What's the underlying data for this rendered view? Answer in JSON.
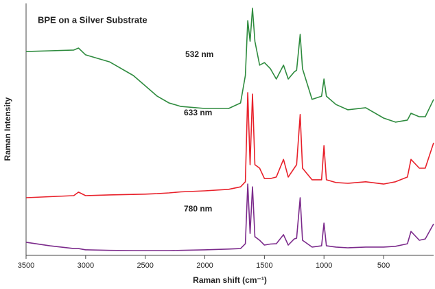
{
  "chart_data": {
    "type": "line",
    "title": "BPE on a Silver Substrate",
    "xlabel": "Raman shift (cm⁻¹)",
    "ylabel": "Raman Intensity",
    "x": [
      3500,
      3300,
      3100,
      3060,
      3000,
      2800,
      2600,
      2500,
      2400,
      2300,
      2200,
      2000,
      1800,
      1700,
      1660,
      1640,
      1620,
      1600,
      1580,
      1540,
      1500,
      1450,
      1400,
      1340,
      1300,
      1250,
      1230,
      1200,
      1180,
      1100,
      1020,
      1000,
      980,
      900,
      800,
      650,
      500,
      400,
      300,
      270,
      200,
      150,
      80
    ],
    "series": [
      {
        "name": "532 nm",
        "color": "#2e8b3e",
        "values": [
          80.9,
          81.2,
          81.5,
          82.3,
          79.6,
          76.8,
          71.4,
          67.3,
          63.2,
          60.5,
          59.1,
          58.3,
          58.3,
          60.5,
          71.4,
          93.2,
          85.0,
          98.1,
          85.0,
          75.5,
          76.5,
          74.1,
          70.0,
          75.5,
          70.0,
          72.8,
          73.5,
          87.7,
          74.1,
          61.9,
          63.2,
          70.0,
          63.2,
          59.9,
          57.8,
          58.6,
          54.5,
          52.9,
          53.7,
          56.4,
          55.0,
          55.0,
          61.9
        ]
      },
      {
        "name": "633 nm",
        "color": "#e8202a",
        "values": [
          22.9,
          23.3,
          23.7,
          25.1,
          23.7,
          24.0,
          24.2,
          24.3,
          24.5,
          24.8,
          25.2,
          25.6,
          26.2,
          27.2,
          29.2,
          64.6,
          36.0,
          64.0,
          36.0,
          34.6,
          30.5,
          30.5,
          31.1,
          38.1,
          31.1,
          34.6,
          36.0,
          55.9,
          34.6,
          30.0,
          30.0,
          43.6,
          30.0,
          28.9,
          28.6,
          29.2,
          28.3,
          29.2,
          31.1,
          38.1,
          34.6,
          34.6,
          44.7
        ]
      },
      {
        "name": "780 nm",
        "color": "#7b2a8b",
        "values": [
          5.2,
          3.8,
          2.7,
          2.7,
          2.2,
          2.0,
          1.9,
          1.9,
          1.9,
          1.9,
          2.0,
          2.2,
          2.5,
          2.7,
          4.6,
          28.3,
          8.7,
          27.2,
          7.4,
          6.0,
          4.1,
          4.5,
          4.6,
          8.2,
          4.1,
          6.5,
          6.8,
          22.9,
          6.0,
          3.3,
          3.8,
          12.8,
          3.8,
          3.3,
          3.0,
          3.3,
          3.3,
          3.6,
          4.6,
          9.5,
          6.0,
          6.5,
          12.5
        ]
      }
    ],
    "xlim": [
      3500,
      80
    ],
    "xticks": [
      3500,
      3000,
      2500,
      2000,
      1500,
      1000,
      500
    ],
    "ylim": [
      0,
      100
    ]
  }
}
